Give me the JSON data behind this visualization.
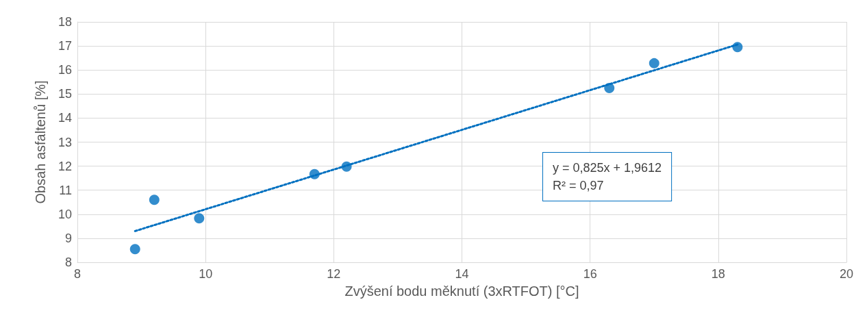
{
  "chart_data": {
    "type": "scatter",
    "xlabel": "Zvýšení bodu měknutí (3xRTFOT) [°C]",
    "ylabel": "Obsah asfaltenů [%]",
    "xlim": [
      8,
      20
    ],
    "xticks": [
      8,
      10,
      12,
      14,
      16,
      18,
      20
    ],
    "ylim": [
      8,
      18
    ],
    "yticks": [
      8,
      9,
      10,
      11,
      12,
      13,
      14,
      15,
      16,
      17,
      18
    ],
    "grid": true,
    "marker": "circle",
    "series": [
      {
        "color": "#0070c0",
        "x": [
          8.9,
          9.2,
          9.9,
          11.7,
          12.2,
          16.3,
          17.0,
          18.3
        ],
        "values": [
          8.55,
          10.6,
          9.83,
          11.67,
          11.98,
          15.25,
          16.28,
          16.95
        ]
      },
      {
        "type": "line",
        "color": "#0070c0",
        "x": [
          8.9,
          18.3
        ],
        "values": [
          9.3,
          17.06
        ],
        "marker": "none",
        "line_style": "dotted"
      }
    ],
    "annotations": [
      "y = 0,825x + 1,9612",
      "R² = 0,97"
    ]
  }
}
